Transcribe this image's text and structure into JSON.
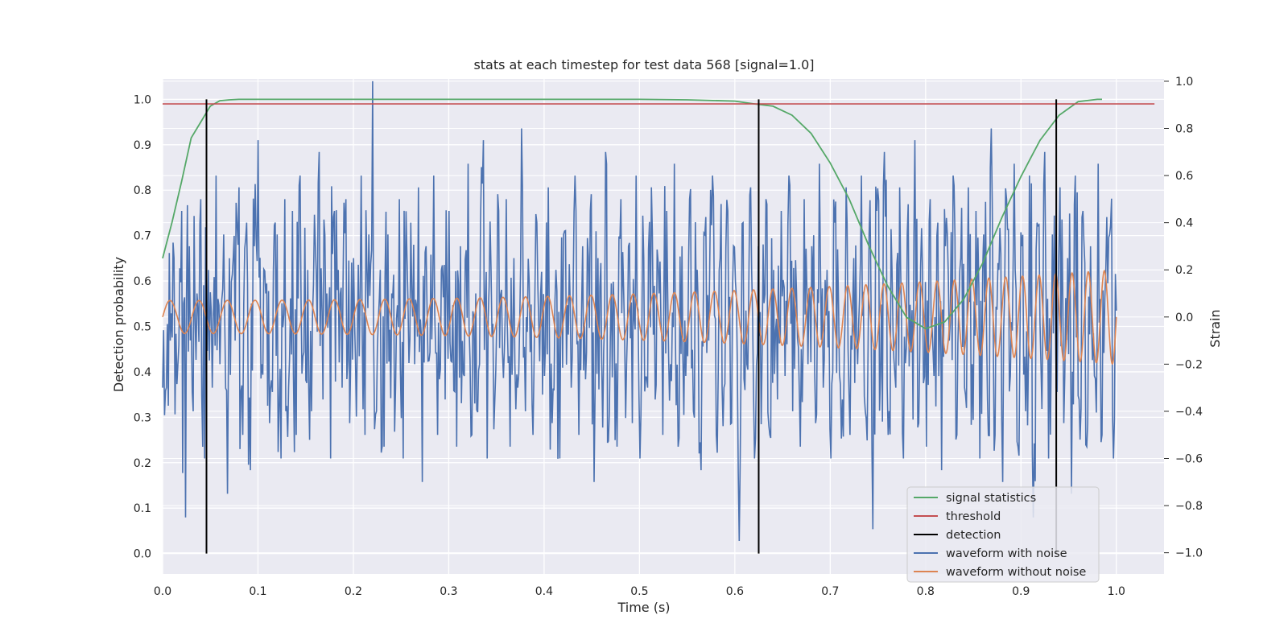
{
  "chart_data": {
    "type": "line",
    "title": "stats at each timestep for test data 568 [signal=1.0]",
    "xlabel": "Time (s)",
    "ylabel": "Detection probability",
    "y2label": "Strain",
    "xlim": [
      0.0,
      1.05
    ],
    "ylim": [
      -0.045,
      1.045
    ],
    "y2lim": [
      -1.09,
      1.01
    ],
    "x_ticks": [
      "0.0",
      "0.1",
      "0.2",
      "0.3",
      "0.4",
      "0.5",
      "0.6",
      "0.7",
      "0.8",
      "0.9",
      "1.0"
    ],
    "y_ticks": [
      "0.0",
      "0.1",
      "0.2",
      "0.3",
      "0.4",
      "0.5",
      "0.6",
      "0.7",
      "0.8",
      "0.9",
      "1.0"
    ],
    "y2_ticks": [
      "−1.0",
      "−0.8",
      "−0.6",
      "−0.4",
      "−0.2",
      "0.0",
      "0.2",
      "0.4",
      "0.6",
      "0.8",
      "1.0"
    ],
    "grid": true,
    "legend_position": "lower-right",
    "colors": {
      "background": "#EAEAF2",
      "grid": "#FFFFFF",
      "signal_statistics": "#55A868",
      "threshold": "#C44E52",
      "detection": "#000000",
      "waveform_with_noise": "#4C72B0",
      "waveform_without_noise": "#DD8452"
    },
    "series": [
      {
        "name": "signal statistics",
        "axis": "left",
        "x": [
          0.0,
          0.01,
          0.02,
          0.03,
          0.04,
          0.05,
          0.06,
          0.07,
          0.08,
          0.1,
          0.2,
          0.3,
          0.4,
          0.5,
          0.55,
          0.6,
          0.62,
          0.64,
          0.66,
          0.68,
          0.7,
          0.72,
          0.74,
          0.76,
          0.78,
          0.8,
          0.82,
          0.84,
          0.86,
          0.88,
          0.9,
          0.91,
          0.92,
          0.94,
          0.96,
          0.98,
          0.985
        ],
        "values": [
          0.65,
          0.73,
          0.82,
          0.915,
          0.95,
          0.985,
          0.997,
          0.999,
          1.0,
          1.0,
          1.0,
          1.0,
          1.0,
          1.0,
          0.999,
          0.996,
          0.99,
          0.985,
          0.965,
          0.925,
          0.86,
          0.78,
          0.68,
          0.59,
          0.52,
          0.495,
          0.51,
          0.56,
          0.64,
          0.74,
          0.83,
          0.87,
          0.91,
          0.965,
          0.995,
          1.0,
          1.0
        ]
      },
      {
        "name": "threshold",
        "axis": "left",
        "x": [
          0.0,
          1.04
        ],
        "values": [
          0.99,
          0.99
        ]
      },
      {
        "name": "detection",
        "axis": "left",
        "x": [
          0.046,
          0.625,
          0.937
        ],
        "values": [
          1.0,
          1.0,
          1.0
        ]
      },
      {
        "name": "waveform with noise",
        "axis": "right",
        "x_start": 0.0,
        "x_end": 1.0,
        "values": [
          -0.3,
          -0.1,
          0.25,
          -0.2,
          0.45,
          -0.85,
          0.3,
          -0.4,
          0.1,
          0.5,
          -0.6,
          0.2,
          -0.3,
          0.6,
          -0.2,
          0.35,
          -0.75,
          0.15,
          -0.1,
          0.55,
          -0.5,
          0.4,
          -0.65,
          0.3,
          0.75,
          -0.2,
          0.1,
          -0.45,
          0.2,
          0.35,
          -0.6,
          0.5,
          -0.3,
          0.45,
          -0.5,
          0.6,
          -0.15,
          0.2,
          -0.4,
          0.3,
          0.7,
          -0.35,
          0.1,
          -0.6,
          0.45,
          0.2,
          -0.3,
          0.5,
          -0.45,
          0.25,
          -0.1,
          0.6,
          -0.5,
          0.35,
          1.0,
          -0.4,
          0.2,
          -0.55,
          0.35,
          0.1,
          -0.3,
          0.5,
          -0.6,
          0.25,
          0.4,
          -0.2,
          0.55,
          -0.7,
          0.3,
          -0.15,
          0.6,
          -0.5,
          0.2,
          -0.35,
          0.45,
          0.05,
          -0.55,
          0.3,
          -0.25,
          0.65,
          -0.5,
          0.1,
          -0.2,
          0.75,
          -0.6,
          0.2,
          -0.35,
          0.45,
          -0.15,
          0.5,
          -0.55,
          0.25,
          -0.3,
          0.8,
          -0.4,
          0.15,
          -0.5,
          0.4,
          0.1,
          -0.25,
          0.55,
          -0.45,
          0.2,
          -0.6,
          0.35,
          0.05,
          -0.3,
          0.6,
          -0.5,
          0.3,
          -0.15,
          0.45,
          -0.7,
          0.25,
          -0.2,
          0.7,
          -0.4,
          0.15,
          -0.55,
          0.5,
          -0.1,
          0.3,
          -0.45,
          0.6,
          -0.6,
          0.25,
          -0.3,
          0.55,
          -0.35,
          0.1,
          -0.5,
          0.45,
          -0.2,
          0.65,
          -0.55,
          0.3,
          -0.25,
          0.5,
          -0.4,
          0.2,
          -0.65,
          0.35,
          -0.1,
          0.6,
          -0.5,
          0.25,
          -0.3,
          0.45,
          -0.45,
          0.15,
          -0.95,
          0.4,
          -0.2,
          0.55,
          -0.6,
          0.3,
          -0.15,
          0.5,
          -0.5,
          0.2,
          -0.35,
          0.45,
          -0.25,
          0.6,
          -0.4,
          0.1,
          -0.55,
          0.5,
          -0.2,
          0.3,
          -0.45,
          0.65,
          -0.3,
          0.2,
          -0.6,
          0.4,
          0.05,
          -0.35,
          0.55,
          -0.5,
          0.25,
          -0.2,
          0.6,
          -0.4,
          0.35,
          -0.9,
          0.45,
          -0.25,
          0.7,
          -0.5,
          0.2,
          -0.3,
          0.55,
          -0.6,
          0.35,
          -0.15,
          0.75,
          -0.45,
          0.2,
          -0.55,
          0.5,
          -0.25,
          0.4,
          -0.65,
          0.3,
          -0.1,
          0.6,
          -0.5,
          0.25,
          -0.3,
          0.55,
          -0.2,
          0.45,
          -0.6,
          0.35,
          -0.35,
          0.8,
          -0.5,
          0.2,
          -0.7,
          0.5,
          -0.25,
          0.65,
          -0.55,
          0.3,
          -0.4,
          0.6,
          -0.85,
          0.4,
          -0.2,
          0.7,
          -0.6,
          0.35,
          -0.3,
          0.55,
          -0.45,
          0.25,
          -0.75,
          0.6,
          -0.35,
          0.45,
          -0.55,
          0.3,
          -0.25,
          0.65,
          -0.5,
          0.2,
          0.35,
          -0.6,
          0.15
        ],
        "note_y_unit": "strain"
      },
      {
        "name": "waveform without noise",
        "axis": "right",
        "x_start": 0.0,
        "x_end": 1.0,
        "amplitude_start": 0.07,
        "amplitude_end": 0.2,
        "cycles": 46,
        "chirp": 0.6
      }
    ]
  }
}
